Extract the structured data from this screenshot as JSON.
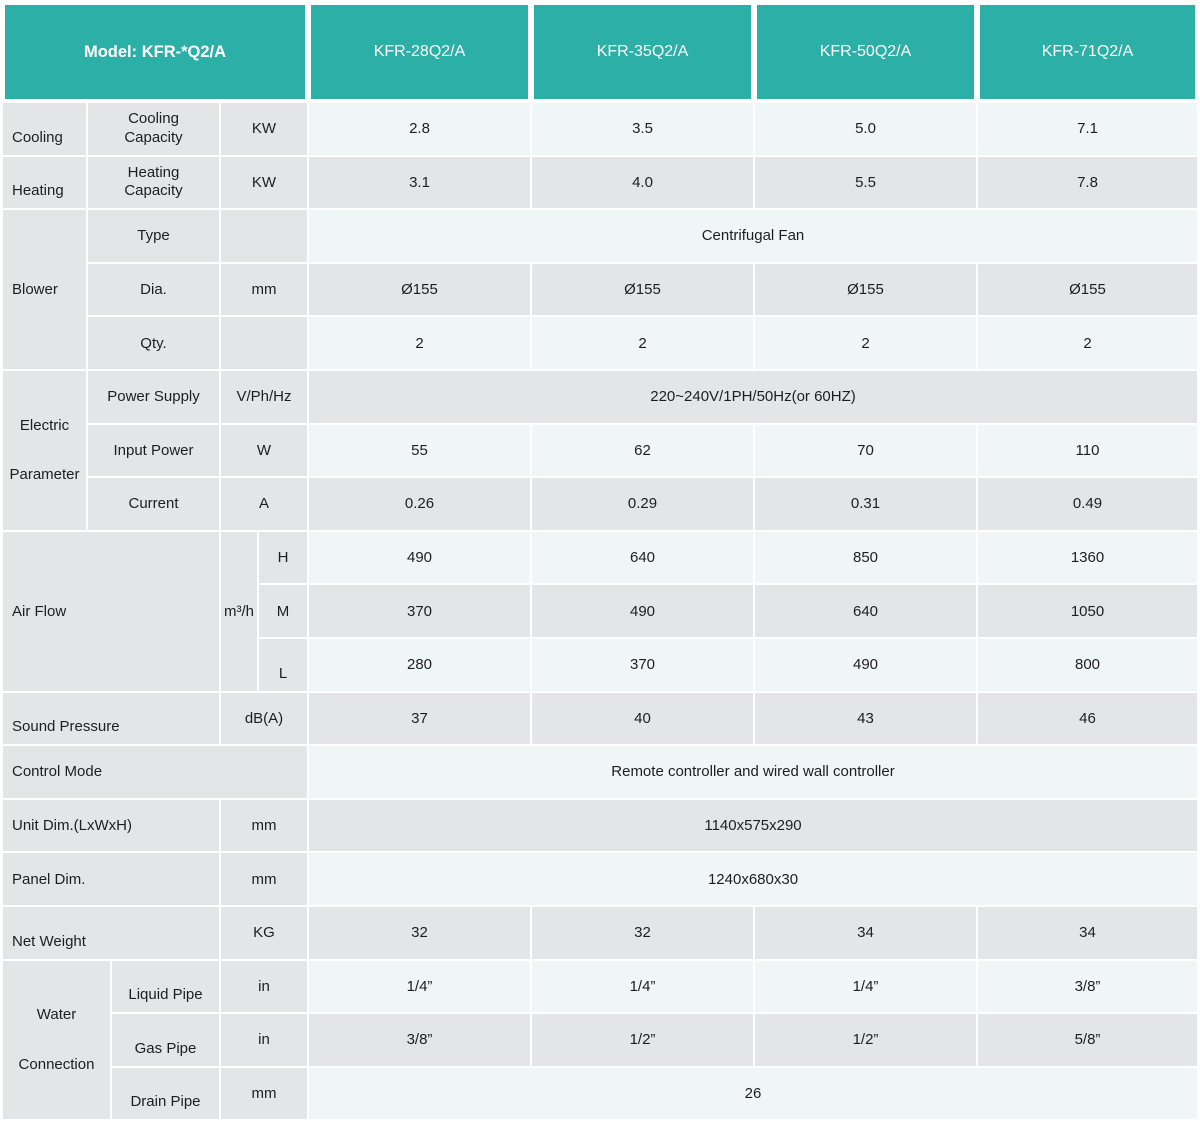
{
  "header": {
    "model_label": "Model: KFR-*Q2/A",
    "columns": [
      "KFR-28Q2/A",
      "KFR-35Q2/A",
      "KFR-50Q2/A",
      "KFR-71Q2/A"
    ]
  },
  "colors": {
    "header_teal": "#2bafa6",
    "row_light": "#f0f5f8",
    "row_gray": "#e4e5e7",
    "text": "#1e1e1e"
  },
  "sections": {
    "cooling": {
      "category": "Cooling",
      "label": "Cooling Capacity",
      "unit": "KW",
      "values": [
        "2.8",
        "3.5",
        "5.0",
        "7.1"
      ]
    },
    "heating": {
      "category": "Heating",
      "label": "Heating Capacity",
      "unit": "KW",
      "values": [
        "3.1",
        "4.0",
        "5.5",
        "7.8"
      ]
    },
    "blower": {
      "category": "Blower",
      "type": {
        "label": "Type",
        "unit": "",
        "span_value": "Centrifugal Fan"
      },
      "dia": {
        "label": "Dia.",
        "unit": "mm",
        "values": [
          "Ø155",
          "Ø155",
          "Ø155",
          "Ø155"
        ]
      },
      "qty": {
        "label": "Qty.",
        "unit": "",
        "values": [
          "2",
          "2",
          "2",
          "2"
        ]
      }
    },
    "electric": {
      "category": "Electric Parameter",
      "power_supply": {
        "label": "Power Supply",
        "unit": "V/Ph/Hz",
        "span_value": "220~240V/1PH/50Hz(or 60HZ)"
      },
      "input_power": {
        "label": "Input Power",
        "unit": "W",
        "values": [
          "55",
          "62",
          "70",
          "110"
        ]
      },
      "current": {
        "label": "Current",
        "unit": "A",
        "values": [
          "0.26",
          "0.29",
          "0.31",
          "0.49"
        ]
      }
    },
    "air_flow": {
      "category": "Air Flow",
      "unit": "m³/h",
      "high": {
        "label": "H",
        "values": [
          "490",
          "640",
          "850",
          "1360"
        ]
      },
      "medium": {
        "label": "M",
        "values": [
          "370",
          "490",
          "640",
          "1050"
        ]
      },
      "low": {
        "label": "L",
        "values": [
          "280",
          "370",
          "490",
          "800"
        ]
      }
    },
    "sound_pressure": {
      "label": "Sound Pressure",
      "unit": "dB(A)",
      "values": [
        "37",
        "40",
        "43",
        "46"
      ]
    },
    "control_mode": {
      "label": "Control Mode",
      "span_value": "Remote controller and wired wall controller"
    },
    "unit_dim": {
      "label": "Unit Dim.(LxWxH)",
      "unit": "mm",
      "span_value": "1140x575x290"
    },
    "panel_dim": {
      "label": "Panel Dim.",
      "unit": "mm",
      "span_value": "1240x680x30"
    },
    "net_weight": {
      "label": "Net Weight",
      "unit": "KG",
      "values": [
        "32",
        "32",
        "34",
        "34"
      ]
    },
    "water": {
      "category": "Water Connection",
      "liquid": {
        "label": "Liquid Pipe",
        "unit": "in",
        "values": [
          "1/4”",
          "1/4”",
          "1/4”",
          "3/8”"
        ]
      },
      "gas": {
        "label": "Gas Pipe",
        "unit": "in",
        "values": [
          "3/8”",
          "1/2”",
          "1/2”",
          "5/8”"
        ]
      },
      "drain": {
        "label": "Drain Pipe",
        "unit": "mm",
        "span_value": "26"
      }
    }
  }
}
